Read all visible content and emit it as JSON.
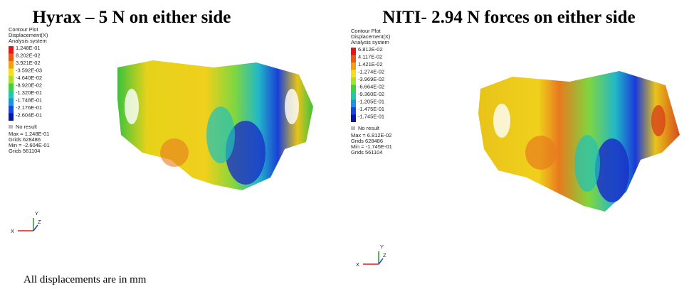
{
  "panels": [
    {
      "title": "Hyrax – 5 N on either side",
      "legend_header": [
        "Contour Plot",
        "Displacement(X)",
        "Analysis system"
      ],
      "legend_values": [
        "1.248E-01",
        "8.202E-02",
        "3.921E-02",
        "-3.592E-03",
        "-4.640E-02",
        "-8.920E-02",
        "-1.320E-01",
        "-1.748E-01",
        "-2.176E-01",
        "-2.604E-01"
      ],
      "no_result": "No result",
      "stats": [
        "Max = 1.248E-01",
        "Grids 628486",
        "Min = -2.604E-01",
        "Grids 561104"
      ],
      "axes": [
        "X",
        "Y",
        "Z"
      ]
    },
    {
      "title": "NITI- 2.94 N forces on either side",
      "legend_header": [
        "Contour Plot",
        "Displacement(X)",
        "Analysis system"
      ],
      "legend_values": [
        "6.812E-02",
        "4.117E-02",
        "1.421E-02",
        "-1.274E-02",
        "-3.969E-02",
        "-6.664E-02",
        "-9.360E-02",
        "-1.205E-01",
        "-1.475E-01",
        "-1.745E-01"
      ],
      "no_result": "No result",
      "stats": [
        "Max = 6.812E-02",
        "Grids 628486",
        "Min = -1.745E-01",
        "Grids 561104"
      ],
      "axes": [
        "X",
        "Y",
        "Z"
      ]
    }
  ],
  "footer": "All displacements are in mm"
}
